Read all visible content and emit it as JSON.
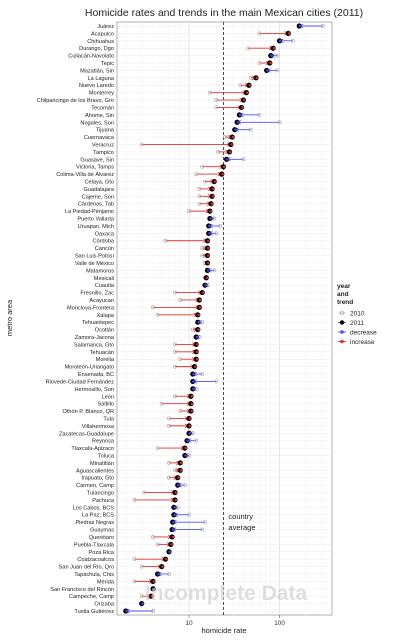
{
  "chart_data": {
    "type": "dot-arrow",
    "title": "Homicide rates and trends in the main Mexican cities (2011)",
    "xlabel": "homicide rate",
    "ylabel": "metro area",
    "x_scale": "log10",
    "xlim": [
      1.6,
      380
    ],
    "x_ticks": [
      {
        "value": 10,
        "label": "10"
      },
      {
        "value": 100,
        "label": "100"
      }
    ],
    "grid": true,
    "reference_line": {
      "value": 24,
      "label_lines": [
        "country",
        "average"
      ]
    },
    "legend": {
      "title_lines": [
        "year",
        "and",
        "trend"
      ],
      "placement": "right",
      "entries": [
        {
          "label": "2010",
          "color": "#a0a0a0",
          "kind": "point-hollow"
        },
        {
          "label": "2011",
          "color": "#000000",
          "kind": "point"
        },
        {
          "label": "decrease",
          "color": "#4d4dff",
          "kind": "arrow"
        },
        {
          "label": "increase",
          "color": "#e03030",
          "kind": "arrow"
        }
      ]
    },
    "watermark": "Incomplete Data",
    "colors": {
      "decrease": "#4d4dff",
      "increase": "#e03030",
      "point_2011": "#000000",
      "point_2010": "#a0a0a0",
      "panel": "#ffffff",
      "grid": "#ebebeb"
    },
    "series_fields": [
      "rate_2010",
      "rate_2011"
    ],
    "categories": [
      {
        "name": "Juárez",
        "rate_2010": 300,
        "rate_2011": 165
      },
      {
        "name": "Acapulco",
        "rate_2010": 60,
        "rate_2011": 125
      },
      {
        "name": "Chihuahus",
        "rate_2010": 140,
        "rate_2011": 100
      },
      {
        "name": "Durango, Dgo",
        "rate_2010": 45,
        "rate_2011": 85
      },
      {
        "name": "Culiacán-Navolato",
        "rate_2010": 95,
        "rate_2011": 80
      },
      {
        "name": "Tepic",
        "rate_2010": 60,
        "rate_2011": 78
      },
      {
        "name": "Mazatlán, Sin",
        "rate_2010": 95,
        "rate_2011": 72
      },
      {
        "name": "La Laguna",
        "rate_2010": 48,
        "rate_2011": 55
      },
      {
        "name": "Nuevo Laredo",
        "rate_2010": 37,
        "rate_2011": 46
      },
      {
        "name": "Monterrey",
        "rate_2010": 17,
        "rate_2011": 43
      },
      {
        "name": "Chilpancingo de los Bravo, Gro",
        "rate_2010": 20,
        "rate_2011": 40
      },
      {
        "name": "Tecomán",
        "rate_2010": 20,
        "rate_2011": 38
      },
      {
        "name": "Ahome, Sin",
        "rate_2010": 60,
        "rate_2011": 36
      },
      {
        "name": "Nogales, Son",
        "rate_2010": 100,
        "rate_2011": 34
      },
      {
        "name": "Tijuana",
        "rate_2010": 48,
        "rate_2011": 32
      },
      {
        "name": "Cuernavaca",
        "rate_2010": 25,
        "rate_2011": 30
      },
      {
        "name": "Veracruz",
        "rate_2010": 3,
        "rate_2011": 29
      },
      {
        "name": "Tampico",
        "rate_2010": 21,
        "rate_2011": 28
      },
      {
        "name": "Guasave, Sin",
        "rate_2010": 40,
        "rate_2011": 26
      },
      {
        "name": "Victoria, Tamps",
        "rate_2010": 14,
        "rate_2011": 24
      },
      {
        "name": "Colima-Villa de Álvarez",
        "rate_2010": 12,
        "rate_2011": 23
      },
      {
        "name": "Celaya, Gto",
        "rate_2010": 15,
        "rate_2011": 19
      },
      {
        "name": "Guadalajara",
        "rate_2010": 13,
        "rate_2011": 18
      },
      {
        "name": "Cajeme, Son",
        "rate_2010": 13,
        "rate_2011": 18
      },
      {
        "name": "Cárdenas, Tab",
        "rate_2010": 13,
        "rate_2011": 17.5
      },
      {
        "name": "La Piedad-Pénjamo",
        "rate_2010": 10,
        "rate_2011": 17
      },
      {
        "name": "Puerto Vallarta",
        "rate_2010": 19,
        "rate_2011": 17
      },
      {
        "name": "Uruapan, Mich",
        "rate_2010": 22,
        "rate_2011": 16.5
      },
      {
        "name": "Oaxaca",
        "rate_2010": 20,
        "rate_2011": 16.5
      },
      {
        "name": "Córdoba",
        "rate_2010": 5.5,
        "rate_2011": 16
      },
      {
        "name": "Cancún",
        "rate_2010": 14,
        "rate_2011": 16
      },
      {
        "name": "San Luis Potosí",
        "rate_2010": 14,
        "rate_2011": 16
      },
      {
        "name": "Valle de México",
        "rate_2010": 15,
        "rate_2011": 16
      },
      {
        "name": "Matamoros",
        "rate_2010": 19,
        "rate_2011": 16
      },
      {
        "name": "Mexicali",
        "rate_2010": 15,
        "rate_2011": 15.5
      },
      {
        "name": "Cuautla",
        "rate_2010": 16,
        "rate_2011": 15
      },
      {
        "name": "Fresnillo, Zac",
        "rate_2010": 7,
        "rate_2011": 14
      },
      {
        "name": "Acayucan",
        "rate_2010": 8,
        "rate_2011": 13
      },
      {
        "name": "Monclova-Frontera",
        "rate_2010": 4,
        "rate_2011": 13
      },
      {
        "name": "Xalapa",
        "rate_2010": 4.5,
        "rate_2011": 12.5
      },
      {
        "name": "Tehuantepec",
        "rate_2010": 14,
        "rate_2011": 12.5
      },
      {
        "name": "Ocotlán",
        "rate_2010": 11,
        "rate_2011": 12.5
      },
      {
        "name": "Zamora-Jacona",
        "rate_2010": 13,
        "rate_2011": 12
      },
      {
        "name": "Salamanca, Gto",
        "rate_2010": 7,
        "rate_2011": 12
      },
      {
        "name": "Tehuacán",
        "rate_2010": 7,
        "rate_2011": 12
      },
      {
        "name": "Morelia",
        "rate_2010": 8,
        "rate_2011": 12
      },
      {
        "name": "Moroleón-Uriangato",
        "rate_2010": 7,
        "rate_2011": 11.5
      },
      {
        "name": "Ensenada, BC",
        "rate_2010": 14,
        "rate_2011": 11
      },
      {
        "name": "Riovede-Ciudad Fernández",
        "rate_2010": 20,
        "rate_2011": 11
      },
      {
        "name": "Hermosillo, Son",
        "rate_2010": 12,
        "rate_2011": 11
      },
      {
        "name": "León",
        "rate_2010": 7,
        "rate_2011": 10.5
      },
      {
        "name": "Saltillo",
        "rate_2010": 5,
        "rate_2011": 10.5
      },
      {
        "name": "Othón P. Blanco, QR",
        "rate_2010": 8,
        "rate_2011": 10.5
      },
      {
        "name": "Tula",
        "rate_2010": 6,
        "rate_2011": 10
      },
      {
        "name": "Villahermosa",
        "rate_2010": 6,
        "rate_2011": 10
      },
      {
        "name": "Zacatecas-Guadalupe",
        "rate_2010": 11,
        "rate_2011": 10
      },
      {
        "name": "Reynosa",
        "rate_2010": 12,
        "rate_2011": 9.5
      },
      {
        "name": "Tlaxcala-Apizaco",
        "rate_2010": 4.5,
        "rate_2011": 9
      },
      {
        "name": "Toluca",
        "rate_2010": 10,
        "rate_2011": 9
      },
      {
        "name": "Minatitlán",
        "rate_2010": 6,
        "rate_2011": 8
      },
      {
        "name": "Aguascalientes",
        "rate_2010": 7,
        "rate_2011": 8
      },
      {
        "name": "Irapuato, Gto",
        "rate_2010": 6,
        "rate_2011": 7.5
      },
      {
        "name": "Carmen, Camp",
        "rate_2010": 9,
        "rate_2011": 7.5
      },
      {
        "name": "Tulancingo",
        "rate_2010": 3.2,
        "rate_2011": 7
      },
      {
        "name": "Pachuca",
        "rate_2010": 2.5,
        "rate_2011": 7
      },
      {
        "name": "Los Cabos, BCS",
        "rate_2010": 7.5,
        "rate_2011": 6.8
      },
      {
        "name": "La Paz, BCS",
        "rate_2010": 10,
        "rate_2011": 6.8
      },
      {
        "name": "Piedras Negras",
        "rate_2010": 15,
        "rate_2011": 6.6
      },
      {
        "name": "Guaymas",
        "rate_2010": 14,
        "rate_2011": 6.5
      },
      {
        "name": "Querétaro",
        "rate_2010": 4,
        "rate_2011": 6.5
      },
      {
        "name": "Puebla-Tlaxcala",
        "rate_2010": 4.5,
        "rate_2011": 6.3
      },
      {
        "name": "Poza Rica",
        "rate_2010": 6,
        "rate_2011": 6
      },
      {
        "name": "Coatzacoalcos",
        "rate_2010": 2.5,
        "rate_2011": 5.5
      },
      {
        "name": "San Juan del Río, Qro",
        "rate_2010": 3,
        "rate_2011": 5
      },
      {
        "name": "Tapachula, Chis",
        "rate_2010": 6,
        "rate_2011": 4.5
      },
      {
        "name": "Mérida",
        "rate_2010": 2.5,
        "rate_2011": 4
      },
      {
        "name": "San Francisco del Rincón",
        "rate_2010": 4,
        "rate_2011": 4
      },
      {
        "name": "Campeche, Camp",
        "rate_2010": 3,
        "rate_2011": 3.8
      },
      {
        "name": "Orizaba",
        "rate_2010": 3,
        "rate_2011": 3
      },
      {
        "name": "Tuxtla Gutiérrez",
        "rate_2010": 4,
        "rate_2011": 2
      }
    ]
  }
}
